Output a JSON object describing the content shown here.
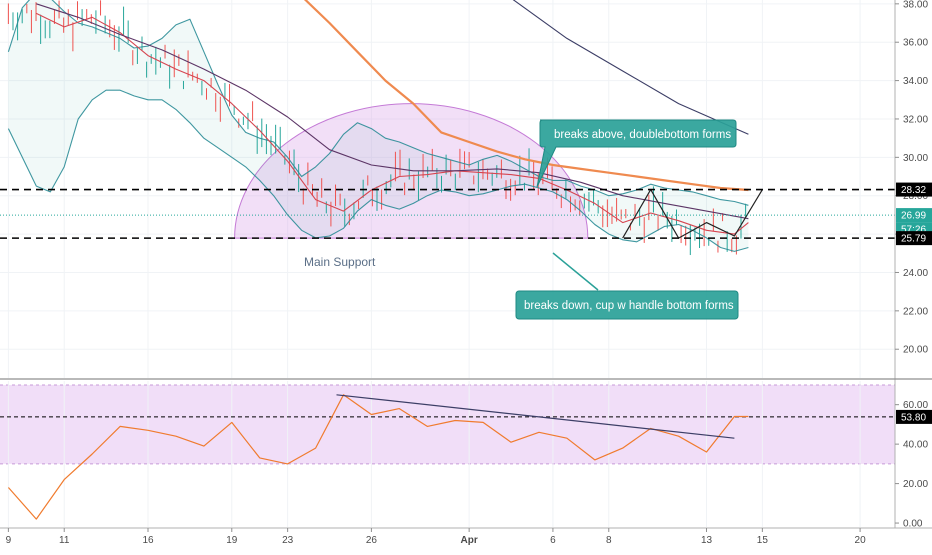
{
  "chart_data": {
    "type": "line",
    "panels": [
      {
        "name": "price",
        "ylim": [
          18.5,
          38.2
        ],
        "yticks": [
          20,
          22,
          24,
          26,
          28,
          30,
          32,
          34,
          36,
          38
        ],
        "ytick_labels": [
          "20.00",
          "22.00",
          "24.00",
          "26.00",
          "28.00",
          "30.00",
          "32.00",
          "34.00",
          "36.00",
          "38.00"
        ],
        "levels": [
          {
            "label": "28.32",
            "value": 28.32,
            "style": "dashed",
            "color": "#000000"
          },
          {
            "label": "25.79",
            "value": 25.79,
            "style": "dashed",
            "color": "#000000"
          },
          {
            "label": "26.99",
            "value": 26.99,
            "style": "dotted",
            "color": "#26a69a"
          }
        ],
        "badge_countdown": "57:26",
        "series": [
          {
            "role": "bollinger-upper",
            "color": "#2a8c96",
            "x": [
              0,
              1,
              2,
              3,
              4,
              5,
              6,
              7,
              8,
              9,
              10,
              11,
              12,
              13,
              14,
              15,
              16,
              17,
              18,
              19,
              20,
              21,
              22,
              23,
              24,
              25,
              26,
              27,
              28,
              29,
              30,
              31,
              32,
              33,
              34,
              35,
              36,
              37,
              38,
              39,
              40,
              41,
              42,
              43,
              44,
              45,
              46,
              47,
              48,
              49,
              50,
              51,
              52,
              53
            ],
            "y": [
              35.5,
              37.8,
              38.6,
              38.3,
              37.6,
              37.0,
              36.8,
              36.5,
              36.2,
              35.7,
              35.8,
              36.2,
              36.9,
              37.2,
              35.5,
              33.8,
              32.2,
              31.3,
              31.0,
              30.8,
              30.0,
              29.0,
              29.5,
              30.2,
              31.2,
              31.8,
              31.5,
              31.0,
              30.8,
              30.5,
              30.2,
              30.0,
              29.8,
              29.6,
              29.9,
              30.1,
              29.8,
              29.4,
              29.0,
              28.8,
              28.8,
              28.5,
              28.3,
              28.0,
              28.1,
              28.3,
              28.6,
              28.4,
              28.3,
              28.2,
              28.0,
              27.8,
              27.7,
              27.5
            ]
          },
          {
            "role": "bollinger-lower",
            "color": "#2a8c96",
            "x": [
              0,
              1,
              2,
              3,
              4,
              5,
              6,
              7,
              8,
              9,
              10,
              11,
              12,
              13,
              14,
              15,
              16,
              17,
              18,
              19,
              20,
              21,
              22,
              23,
              24,
              25,
              26,
              27,
              28,
              29,
              30,
              31,
              32,
              33,
              34,
              35,
              36,
              37,
              38,
              39,
              40,
              41,
              42,
              43,
              44,
              45,
              46,
              47,
              48,
              49,
              50,
              51,
              52,
              53
            ],
            "y": [
              31.5,
              30.0,
              28.5,
              28.2,
              29.5,
              32.0,
              33.0,
              33.5,
              33.5,
              33.2,
              33.0,
              33.0,
              32.5,
              31.8,
              31.0,
              30.5,
              30.0,
              29.5,
              28.8,
              28.0,
              27.0,
              26.2,
              25.8,
              25.9,
              26.3,
              27.2,
              27.8,
              27.5,
              27.3,
              27.6,
              28.0,
              28.3,
              28.2,
              28.0,
              28.1,
              28.3,
              28.5,
              28.6,
              28.4,
              28.2,
              27.8,
              27.2,
              26.5,
              26.0,
              25.7,
              25.6,
              26.0,
              26.4,
              26.5,
              26.2,
              25.8,
              25.3,
              25.1,
              25.3
            ]
          },
          {
            "role": "moving-average-fast",
            "color": "#d64550",
            "x": [
              2,
              4,
              6,
              8,
              10,
              12,
              14,
              16,
              18,
              20,
              22,
              24,
              26,
              28,
              30,
              32,
              34,
              36,
              38,
              40,
              42,
              44,
              46,
              48,
              50,
              52,
              53
            ],
            "y": [
              37.5,
              36.8,
              37.3,
              36.5,
              35.3,
              34.6,
              34.0,
              32.8,
              31.4,
              29.8,
              27.8,
              27.2,
              28.3,
              29.0,
              29.1,
              29.3,
              29.2,
              29.1,
              28.9,
              28.3,
              27.6,
              26.6,
              27.1,
              26.7,
              26.2,
              26.0,
              26.6
            ]
          },
          {
            "role": "moving-average-mid",
            "color": "#5c3566",
            "x": [
              2,
              5,
              8,
              11,
              14,
              17,
              20,
              23,
              26,
              29,
              32,
              35,
              38,
              41,
              44,
              47,
              50,
              53
            ],
            "y": [
              38.0,
              37.3,
              36.4,
              35.6,
              34.6,
              33.5,
              32.1,
              30.4,
              29.6,
              29.3,
              29.3,
              29.4,
              29.2,
              28.7,
              28.0,
              27.6,
              27.2,
              26.8
            ]
          },
          {
            "role": "moving-average-slow",
            "color": "#ef8a4f",
            "x": [
              21,
              23,
              25,
              27,
              29,
              31,
              33,
              35,
              37,
              39,
              41,
              43,
              45,
              47,
              49,
              51,
              53
            ],
            "y": [
              38.4,
              37.0,
              35.5,
              34.0,
              32.8,
              31.3,
              30.8,
              30.3,
              29.9,
              29.6,
              29.4,
              29.2,
              29.0,
              28.8,
              28.6,
              28.4,
              28.3
            ]
          },
          {
            "role": "moving-average-long",
            "color": "#3c3e66",
            "x": [
              36,
              40,
              44,
              48,
              53
            ],
            "y": [
              38.3,
              36.2,
              34.5,
              32.8,
              31.2
            ]
          },
          {
            "role": "price-path",
            "color": "#222222",
            "x": [
              44,
              46,
              48,
              50,
              52,
              54
            ],
            "y": [
              25.79,
              28.32,
              25.79,
              26.6,
              25.9,
              28.32
            ]
          }
        ],
        "annotations": [
          {
            "text": "breaks above, doublebottom forms"
          },
          {
            "text": "breaks down, cup w handle bottom forms"
          },
          {
            "text": "Main Support"
          }
        ]
      },
      {
        "name": "rsi",
        "ylim": [
          -2,
          72
        ],
        "yticks": [
          0,
          20,
          40,
          60
        ],
        "ytick_labels": [
          "0.00",
          "20.00",
          "40.00",
          "60.00"
        ],
        "band": [
          30,
          70
        ],
        "level": {
          "label": "53.80",
          "value": 53.8
        },
        "series": [
          {
            "role": "rsi",
            "color": "#f07b2e",
            "x": [
              0,
              2,
              4,
              6,
              8,
              10,
              12,
              14,
              16,
              18,
              20,
              22,
              24,
              26,
              28,
              30,
              32,
              34,
              36,
              38,
              40,
              42,
              44,
              46,
              48,
              50,
              52,
              53
            ],
            "y": [
              18,
              2,
              22,
              35,
              49,
              47,
              44,
              39,
              51,
              33,
              30,
              38,
              65,
              55,
              58,
              49,
              52,
              51,
              41,
              46,
              43,
              32,
              38,
              48,
              44,
              36,
              54,
              54
            ]
          },
          {
            "role": "trendline",
            "color": "#3c3e66",
            "x": [
              23.5,
              52
            ],
            "y": [
              65,
              43
            ]
          }
        ]
      }
    ],
    "xticks": [
      {
        "label": "9",
        "x": 0
      },
      {
        "label": "11",
        "x": 4
      },
      {
        "label": "16",
        "x": 10
      },
      {
        "label": "19",
        "x": 16
      },
      {
        "label": "23",
        "x": 20
      },
      {
        "label": "26",
        "x": 26
      },
      {
        "label": "Apr",
        "x": 33
      },
      {
        "label": "6",
        "x": 39
      },
      {
        "label": "8",
        "x": 43
      },
      {
        "label": "13",
        "x": 50
      },
      {
        "label": "15",
        "x": 54
      },
      {
        "label": "20",
        "x": 61
      }
    ],
    "xlim": [
      -0.6,
      63.5
    ]
  }
}
